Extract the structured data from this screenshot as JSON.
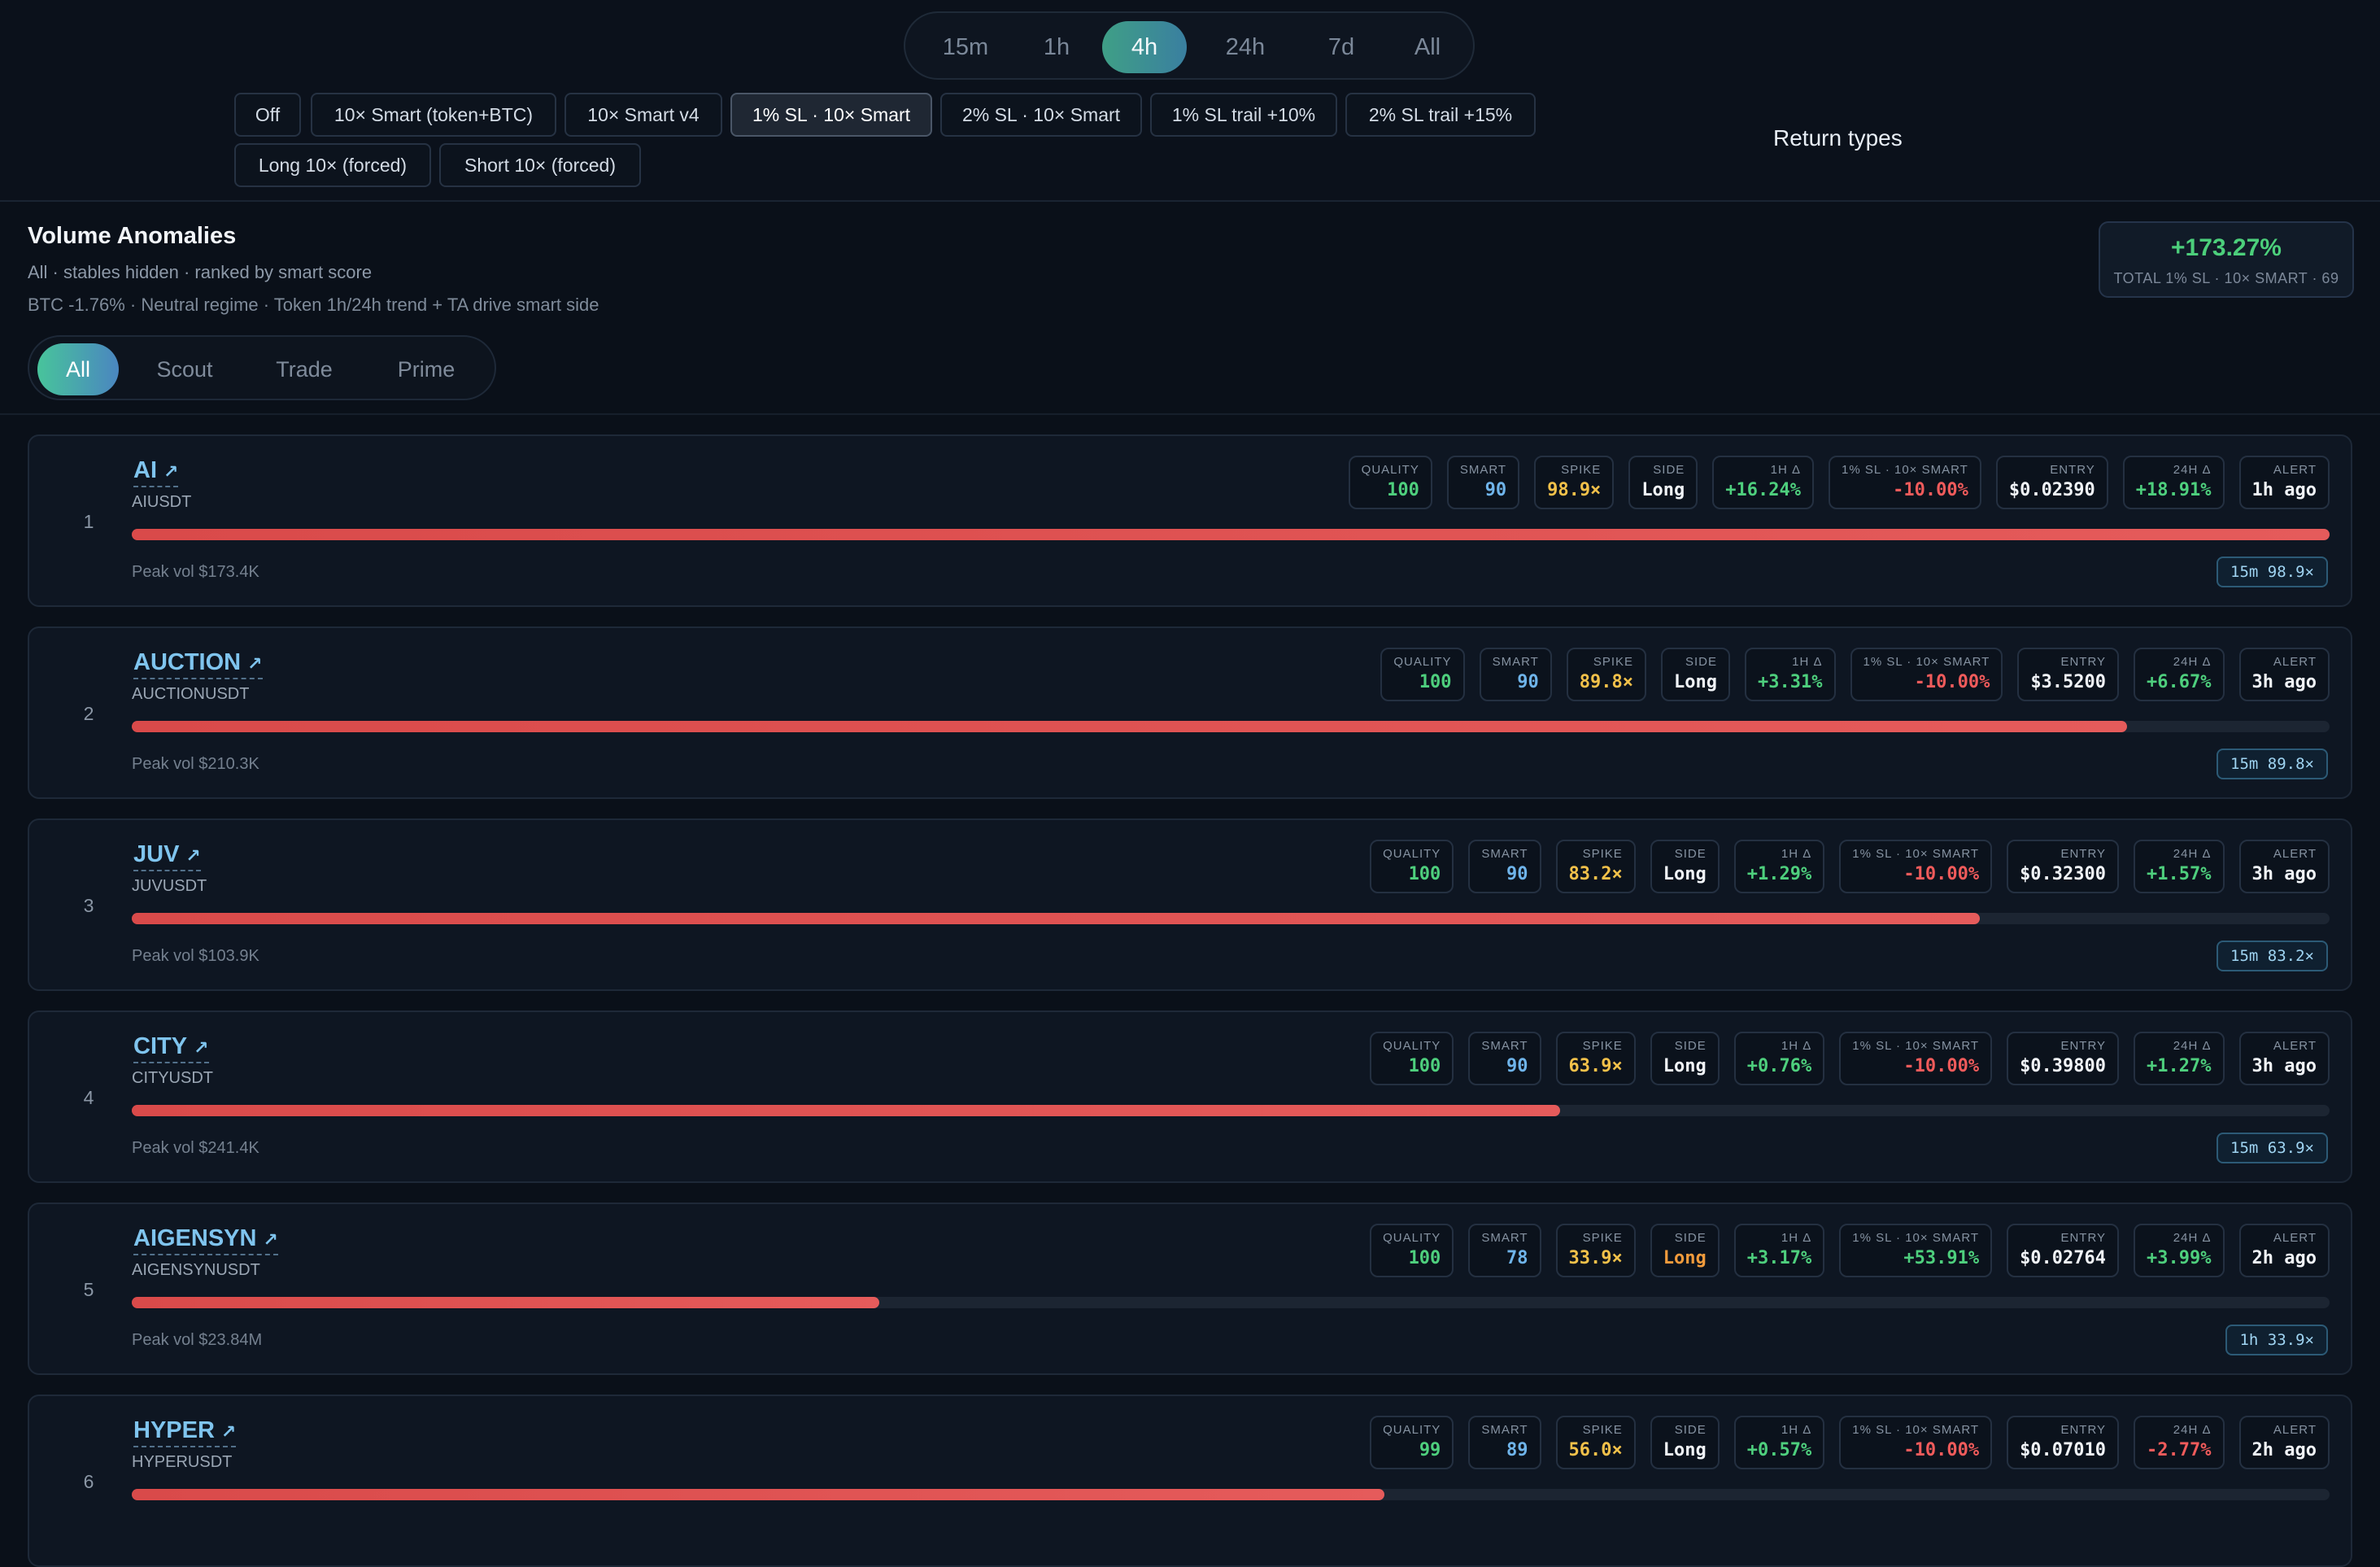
{
  "timeframes": {
    "items": [
      "15m",
      "1h",
      "4h",
      "24h",
      "7d",
      "All"
    ],
    "active": "4h"
  },
  "modes": {
    "items": [
      "Off",
      "10× Smart (token+BTC)",
      "10× Smart v4",
      "1% SL · 10× Smart",
      "2% SL · 10× Smart",
      "1% SL trail +10%",
      "2% SL trail +15%",
      "Long 10× (forced)",
      "Short 10× (forced)"
    ],
    "active": "1% SL · 10× Smart"
  },
  "return_types_label": "Return types",
  "header": {
    "title": "Volume Anomalies",
    "subtitle": "All · stables hidden · ranked by smart score",
    "regime": "BTC -1.76% · Neutral regime · Token 1h/24h trend + TA drive smart side",
    "total_value": "+173.27%",
    "total_label": "TOTAL 1% SL · 10× SMART · 69"
  },
  "tiers": {
    "items": [
      "All",
      "Scout",
      "Trade",
      "Prime"
    ],
    "active": "All"
  },
  "metric_labels": {
    "quality": "QUALITY",
    "smart": "SMART",
    "spike": "SPIKE",
    "side": "SIDE",
    "h1": "1H Δ",
    "ret": "1% SL · 10× SMART",
    "entry": "ENTRY",
    "h24": "24H Δ",
    "alert": "ALERT"
  },
  "colors": {
    "positive": "#4ecf7d",
    "negative": "#f05b5b",
    "smart": "#6fb4ea",
    "spike": "#f2c14a",
    "long": "#f1f4f8",
    "long_alt": "#f29b3c",
    "bar": "#e55b5b"
  },
  "rows": [
    {
      "rank": "1",
      "name": "AI",
      "pair": "AIUSDT",
      "quality": "100",
      "smart": "90",
      "spike": "98.9×",
      "side": "Long",
      "side_color": "white",
      "h1": "+16.24%",
      "h1_color": "green",
      "ret": "-10.00%",
      "ret_color": "red",
      "entry": "$0.02390",
      "h24": "+18.91%",
      "h24_color": "green",
      "alert": "1h ago",
      "bar_fraction": 1.0,
      "peak": "Peak vol $173.4K",
      "chip": "15m 98.9×"
    },
    {
      "rank": "2",
      "name": "AUCTION",
      "pair": "AUCTIONUSDT",
      "quality": "100",
      "smart": "90",
      "spike": "89.8×",
      "side": "Long",
      "side_color": "white",
      "h1": "+3.31%",
      "h1_color": "green",
      "ret": "-10.00%",
      "ret_color": "red",
      "entry": "$3.5200",
      "h24": "+6.67%",
      "h24_color": "green",
      "alert": "3h ago",
      "bar_fraction": 0.908,
      "peak": "Peak vol $210.3K",
      "chip": "15m 89.8×"
    },
    {
      "rank": "3",
      "name": "JUV",
      "pair": "JUVUSDT",
      "quality": "100",
      "smart": "90",
      "spike": "83.2×",
      "side": "Long",
      "side_color": "white",
      "h1": "+1.29%",
      "h1_color": "green",
      "ret": "-10.00%",
      "ret_color": "red",
      "entry": "$0.32300",
      "h24": "+1.57%",
      "h24_color": "green",
      "alert": "3h ago",
      "bar_fraction": 0.841,
      "peak": "Peak vol $103.9K",
      "chip": "15m 83.2×"
    },
    {
      "rank": "4",
      "name": "CITY",
      "pair": "CITYUSDT",
      "quality": "100",
      "smart": "90",
      "spike": "63.9×",
      "side": "Long",
      "side_color": "white",
      "h1": "+0.76%",
      "h1_color": "green",
      "ret": "-10.00%",
      "ret_color": "red",
      "entry": "$0.39800",
      "h24": "+1.27%",
      "h24_color": "green",
      "alert": "3h ago",
      "bar_fraction": 0.65,
      "peak": "Peak vol $241.4K",
      "chip": "15m 63.9×"
    },
    {
      "rank": "5",
      "name": "AIGENSYN",
      "pair": "AIGENSYNUSDT",
      "quality": "100",
      "smart": "78",
      "spike": "33.9×",
      "side": "Long",
      "side_color": "orange",
      "h1": "+3.17%",
      "h1_color": "green",
      "ret": "+53.91%",
      "ret_color": "green",
      "entry": "$0.02764",
      "h24": "+3.99%",
      "h24_color": "green",
      "alert": "2h ago",
      "bar_fraction": 0.34,
      "peak": "Peak vol $23.84M",
      "chip": "1h 33.9×"
    },
    {
      "rank": "6",
      "name": "HYPER",
      "pair": "HYPERUSDT",
      "quality": "99",
      "smart": "89",
      "spike": "56.0×",
      "side": "Long",
      "side_color": "white",
      "h1": "+0.57%",
      "h1_color": "green",
      "ret": "-10.00%",
      "ret_color": "red",
      "entry": "$0.07010",
      "h24": "-2.77%",
      "h24_color": "red",
      "alert": "2h ago",
      "bar_fraction": 0.57,
      "peak": "",
      "chip": ""
    }
  ]
}
